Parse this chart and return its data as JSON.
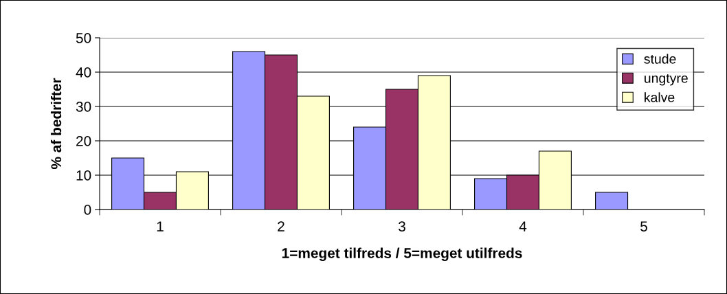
{
  "chart_data": {
    "type": "bar",
    "xlabel": "1=meget tilfreds / 5=meget utilfreds",
    "ylabel": "% af bedrifter",
    "categories": [
      "1",
      "2",
      "3",
      "4",
      "5"
    ],
    "series": [
      {
        "name": "stude",
        "color": "#9999ff",
        "values": [
          15,
          46,
          24,
          9,
          5
        ]
      },
      {
        "name": "ungtyre",
        "color": "#993366",
        "values": [
          5,
          45,
          35,
          10,
          null
        ]
      },
      {
        "name": "kalve",
        "color": "#ffffcc",
        "values": [
          11,
          33,
          39,
          17,
          null
        ]
      }
    ],
    "ylim": [
      0,
      50
    ],
    "yticks": [
      0,
      10,
      20,
      30,
      40,
      50
    ],
    "grid": "y",
    "legend": "top right"
  }
}
